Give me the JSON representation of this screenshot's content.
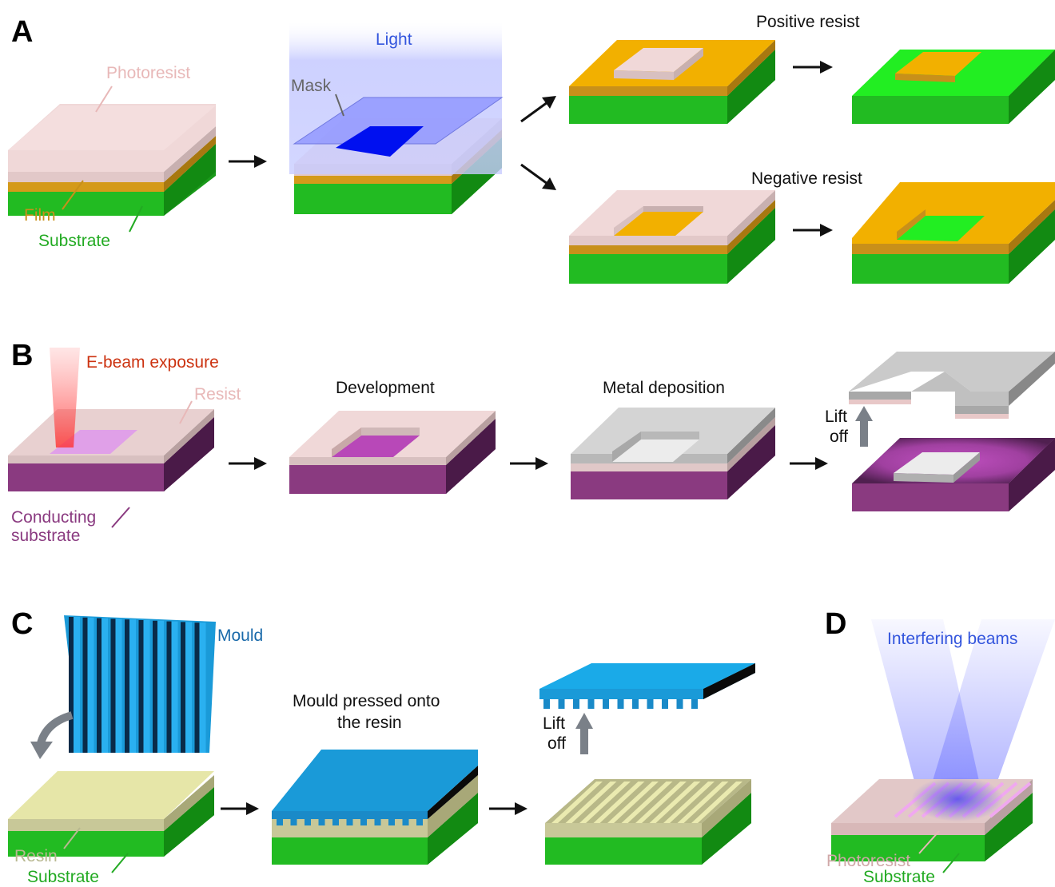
{
  "panels": {
    "a": "A",
    "b": "B",
    "c": "C",
    "d": "D"
  },
  "panel_a": {
    "photoresist": "Photoresist",
    "film": "Film",
    "substrate": "Substrate",
    "light": "Light",
    "mask": "Mask",
    "positive": "Positive resist",
    "negative": "Negative resist"
  },
  "panel_b": {
    "ebeam": "E-beam exposure",
    "resist": "Resist",
    "conducting_1": "Conducting",
    "conducting_2": "substrate",
    "development": "Development",
    "metal": "Metal deposition",
    "lift_1": "Lift",
    "lift_2": "off"
  },
  "panel_c": {
    "mould": "Mould",
    "pressed_1": "Mould pressed onto",
    "pressed_2": "the resin",
    "lift_1": "Lift",
    "lift_2": "off",
    "resin": "Resin",
    "substrate": "Substrate"
  },
  "panel_d": {
    "beams": "Interfering beams",
    "photoresist": "Photoresist",
    "substrate": "Substrate"
  },
  "colors": {
    "substrate": "#22bb22",
    "film": "#d49a1a",
    "photoresist": "#f0d8d8",
    "resist_label": "#e8b8b8",
    "film_label": "#c8901a",
    "substrate_label": "#22aa22",
    "light_label": "#3355dd",
    "mask_label": "#666666",
    "ebeam_label": "#cc3311",
    "conducting_label": "#8a3a80",
    "mould": "#1a9ad8",
    "mould_label": "#1a6aaa",
    "resin": "#e6e6a8",
    "resin_label": "#b8b890",
    "purple": "#8a3a80",
    "metal": "#d0d0d0"
  }
}
